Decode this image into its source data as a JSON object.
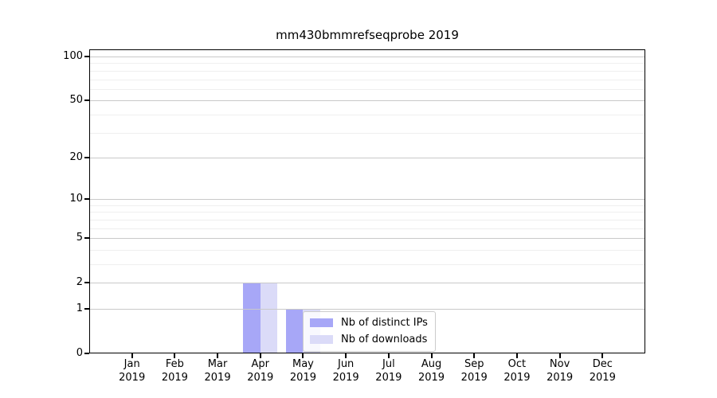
{
  "chart_data": {
    "type": "bar",
    "title": "mm430bmmrefseqprobe 2019",
    "year": "2019",
    "categories": [
      "Jan",
      "Feb",
      "Mar",
      "Apr",
      "May",
      "Jun",
      "Jul",
      "Aug",
      "Sep",
      "Oct",
      "Nov",
      "Dec"
    ],
    "series": [
      {
        "name": "Nb of distinct IPs",
        "color": "#a7a7f7",
        "values": [
          0,
          0,
          0,
          2,
          1,
          0,
          0,
          0,
          0,
          0,
          0,
          0
        ]
      },
      {
        "name": "Nb of downloads",
        "color": "#dbdbf8",
        "values": [
          0,
          0,
          0,
          2,
          1,
          0,
          0,
          0,
          0,
          0,
          0,
          0
        ]
      }
    ],
    "yscale": "log1p",
    "yticks": [
      0,
      1,
      2,
      5,
      10,
      20,
      50,
      100
    ],
    "minor_yticks": [
      3,
      4,
      6,
      7,
      8,
      9,
      30,
      40,
      60,
      70,
      80,
      90
    ],
    "ylim": [
      0,
      112
    ],
    "grid": "horizontal",
    "legend_position": "lower-center",
    "axis_color": "#000000",
    "major_grid_color": "#c9c9c9",
    "minor_grid_color": "#efefef"
  }
}
